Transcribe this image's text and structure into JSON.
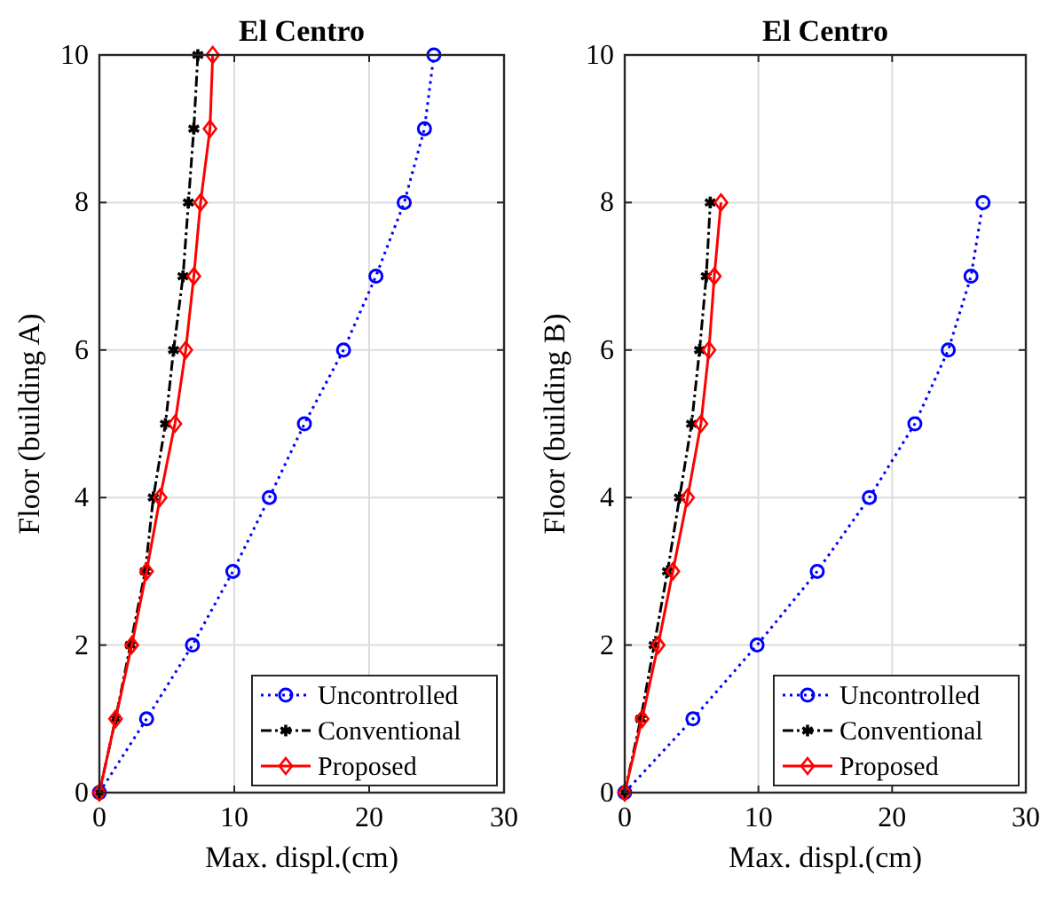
{
  "chart_data": [
    {
      "type": "line",
      "title": "El Centro",
      "xlabel": "Max. displ.(cm)",
      "ylabel": "Floor (building A)",
      "xlim": [
        0,
        30
      ],
      "xticks": [
        0,
        10,
        20,
        30
      ],
      "ylim": [
        0,
        10
      ],
      "yticks": [
        0,
        2,
        4,
        6,
        8,
        10
      ],
      "grid": true,
      "legend": "bottom right",
      "series": [
        {
          "name": "Uncontrolled",
          "color": "#0000ff",
          "marker": "circle",
          "line_style": "dotted",
          "x": [
            0,
            3.5,
            6.9,
            9.9,
            12.6,
            15.2,
            18.1,
            20.5,
            22.6,
            24.1,
            24.8
          ],
          "values": [
            0,
            1,
            2,
            3,
            4,
            5,
            6,
            7,
            8,
            9,
            10
          ]
        },
        {
          "name": "Conventional",
          "color": "#000000",
          "marker": "cross",
          "line_style": "dashdot",
          "x": [
            0,
            1.2,
            2.3,
            3.4,
            4.0,
            4.9,
            5.5,
            6.2,
            6.6,
            7.0,
            7.3
          ],
          "values": [
            0,
            1,
            2,
            3,
            4,
            5,
            6,
            7,
            8,
            9,
            10
          ]
        },
        {
          "name": "Proposed",
          "color": "#ff0000",
          "marker": "diamond",
          "line_style": "solid",
          "x": [
            0,
            1.2,
            2.4,
            3.5,
            4.5,
            5.6,
            6.4,
            7.0,
            7.5,
            8.2,
            8.4
          ],
          "values": [
            0,
            1,
            2,
            3,
            4,
            5,
            6,
            7,
            8,
            9,
            10
          ]
        }
      ]
    },
    {
      "type": "line",
      "title": "El Centro",
      "xlabel": "Max. displ.(cm)",
      "ylabel": "Floor (building B)",
      "xlim": [
        0,
        30
      ],
      "xticks": [
        0,
        10,
        20,
        30
      ],
      "ylim": [
        0,
        10
      ],
      "yticks": [
        0,
        2,
        4,
        6,
        8,
        10
      ],
      "grid": true,
      "legend": "bottom right",
      "series": [
        {
          "name": "Uncontrolled",
          "color": "#0000ff",
          "marker": "circle",
          "line_style": "dotted",
          "x": [
            0,
            5.1,
            9.9,
            14.4,
            18.3,
            21.7,
            24.2,
            25.9,
            26.8
          ],
          "values": [
            0,
            1,
            2,
            3,
            4,
            5,
            6,
            7,
            8
          ]
        },
        {
          "name": "Conventional",
          "color": "#000000",
          "marker": "cross",
          "line_style": "dashdot",
          "x": [
            0,
            1.2,
            2.2,
            3.2,
            4.1,
            5.0,
            5.6,
            6.1,
            6.4
          ],
          "values": [
            0,
            1,
            2,
            3,
            4,
            5,
            6,
            7,
            8
          ]
        },
        {
          "name": "Proposed",
          "color": "#ff0000",
          "marker": "diamond",
          "line_style": "solid",
          "x": [
            0,
            1.3,
            2.5,
            3.6,
            4.7,
            5.7,
            6.3,
            6.7,
            7.2
          ],
          "values": [
            0,
            1,
            2,
            3,
            4,
            5,
            6,
            7,
            8
          ]
        }
      ]
    }
  ]
}
